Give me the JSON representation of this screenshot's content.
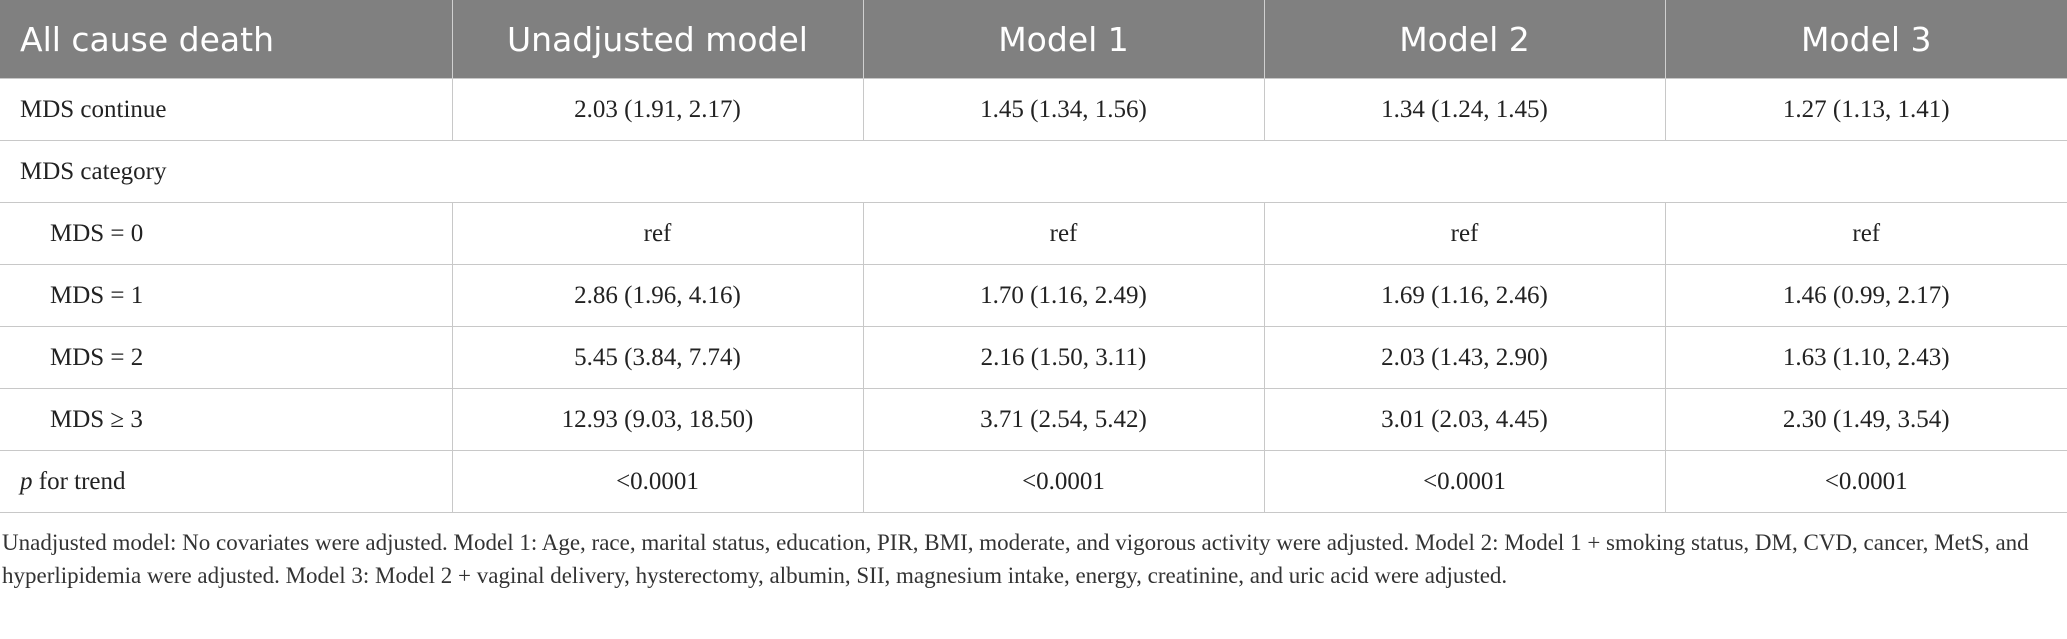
{
  "table": {
    "header": [
      "All cause death",
      "Unadjusted model",
      "Model 1",
      "Model 2",
      "Model 3"
    ],
    "rows": [
      [
        "MDS continue",
        "2.03 (1.91, 2.17)",
        "1.45 (1.34, 1.56)",
        "1.34 (1.24, 1.45)",
        "1.27 (1.13, 1.41)"
      ],
      [
        "MDS category"
      ],
      [
        "MDS = 0",
        "ref",
        "ref",
        "ref",
        "ref"
      ],
      [
        "MDS = 1",
        "2.86 (1.96, 4.16)",
        "1.70 (1.16, 2.49)",
        "1.69 (1.16, 2.46)",
        "1.46 (0.99, 2.17)"
      ],
      [
        "MDS = 2",
        "5.45 (3.84, 7.74)",
        "2.16 (1.50, 3.11)",
        "2.03 (1.43, 2.90)",
        "1.63 (1.10, 2.43)"
      ],
      [
        "MDS ≥ 3",
        "12.93 (9.03, 18.50)",
        "3.71 (2.54, 5.42)",
        "3.01 (2.03, 4.45)",
        "2.30 (1.49, 3.54)"
      ],
      [
        "p for trend",
        "<0.0001",
        "<0.0001",
        "<0.0001",
        "<0.0001"
      ]
    ],
    "footnote": "Unadjusted model: No covariates were adjusted. Model 1: Age, race, marital status, education, PIR, BMI, moderate, and vigorous activity were adjusted. Model 2: Model 1 + smoking status, DM, CVD, cancer, MetS, and hyperlipidemia were adjusted. Model 3: Model 2 + vaginal delivery, hysterectomy, albumin, SII, magnesium intake, energy, creatinine, and uric acid were adjusted."
  }
}
